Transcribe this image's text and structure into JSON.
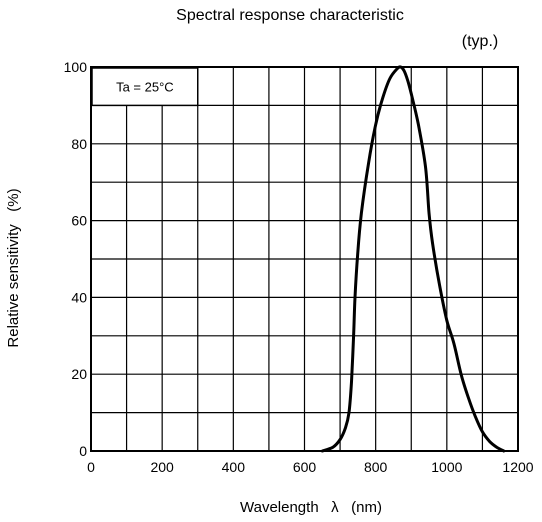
{
  "chart_data": {
    "type": "line",
    "title": "Spectral response characteristic",
    "subtitle": "(typ.)",
    "annotation": "Ta = 25°C",
    "xlabel": "Wavelength   λ   (nm)",
    "ylabel": "Relative sensitivity   (%)",
    "xlim": [
      0,
      1200
    ],
    "ylim": [
      0,
      100
    ],
    "x_ticks": [
      0,
      200,
      400,
      600,
      800,
      1000,
      1200
    ],
    "y_ticks": [
      0,
      20,
      40,
      60,
      80,
      100
    ],
    "x_grid_step": 100,
    "y_grid_step": 10,
    "grid": true,
    "line_color": "#000000",
    "series": [
      {
        "x": [
          650,
          680,
          700,
          715,
          725,
          732,
          738,
          742,
          750,
          760,
          780,
          800,
          820,
          840,
          860,
          870,
          880,
          890,
          900,
          920,
          940,
          950,
          960,
          980,
          1000,
          1020,
          1040,
          1060,
          1080,
          1100,
          1120,
          1140,
          1160
        ],
        "y": [
          0,
          1,
          3,
          6,
          10,
          18,
          30,
          40,
          52,
          62,
          75,
          85,
          92,
          97,
          99.5,
          100,
          99,
          96.5,
          93,
          85,
          74,
          62,
          54,
          43,
          34,
          28,
          20,
          14,
          9,
          5,
          2.5,
          1,
          0
        ]
      }
    ]
  }
}
